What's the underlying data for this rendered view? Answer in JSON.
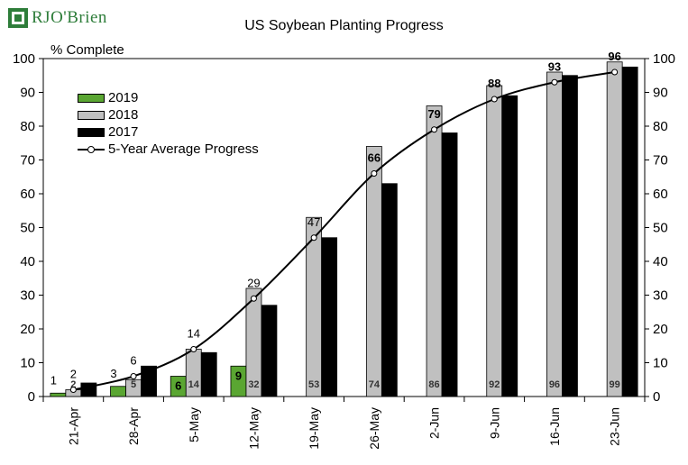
{
  "logo": {
    "text": "RJO'Brien"
  },
  "chart_data": {
    "type": "bar",
    "title": "US Soybean Planting Progress",
    "ylabel": "% Complete",
    "xlabel": "",
    "ylim": [
      0,
      100
    ],
    "yticks": [
      0,
      10,
      20,
      30,
      40,
      50,
      60,
      70,
      80,
      90,
      100
    ],
    "secondary_y_axis": true,
    "grid": false,
    "legend_position": "top-left",
    "categories": [
      "21-Apr",
      "28-Apr",
      "5-May",
      "12-May",
      "19-May",
      "26-May",
      "2-Jun",
      "9-Jun",
      "16-Jun",
      "23-Jun"
    ],
    "series": [
      {
        "name": "2019",
        "type": "bar",
        "color": "#5aa632",
        "values": [
          1,
          3,
          6,
          9,
          null,
          null,
          null,
          null,
          null,
          null
        ],
        "labels": [
          "1",
          "3",
          "6",
          "9",
          null,
          null,
          null,
          null,
          null,
          null
        ]
      },
      {
        "name": "2018",
        "type": "bar",
        "color": "#c0c0c0",
        "values": [
          2,
          5,
          14,
          32,
          53,
          74,
          86,
          92,
          96,
          99
        ],
        "labels": [
          "2",
          "5",
          "14",
          "32",
          "53",
          "74",
          "86",
          "92",
          "96",
          "99"
        ]
      },
      {
        "name": "2017",
        "type": "bar",
        "color": "#000000",
        "values": [
          4,
          9,
          13,
          27,
          47,
          63,
          78,
          89,
          95,
          97.5
        ],
        "labels": [
          null,
          null,
          null,
          null,
          null,
          null,
          null,
          null,
          null,
          null
        ]
      },
      {
        "name": "5-Year Average Progress",
        "type": "line",
        "color": "#000000",
        "values": [
          2,
          6,
          14,
          29,
          47,
          66,
          79,
          88,
          93,
          96
        ],
        "labels": [
          "2",
          "6",
          "14",
          "29",
          "47",
          "66",
          "79",
          "88",
          "93",
          "96"
        ]
      }
    ]
  }
}
